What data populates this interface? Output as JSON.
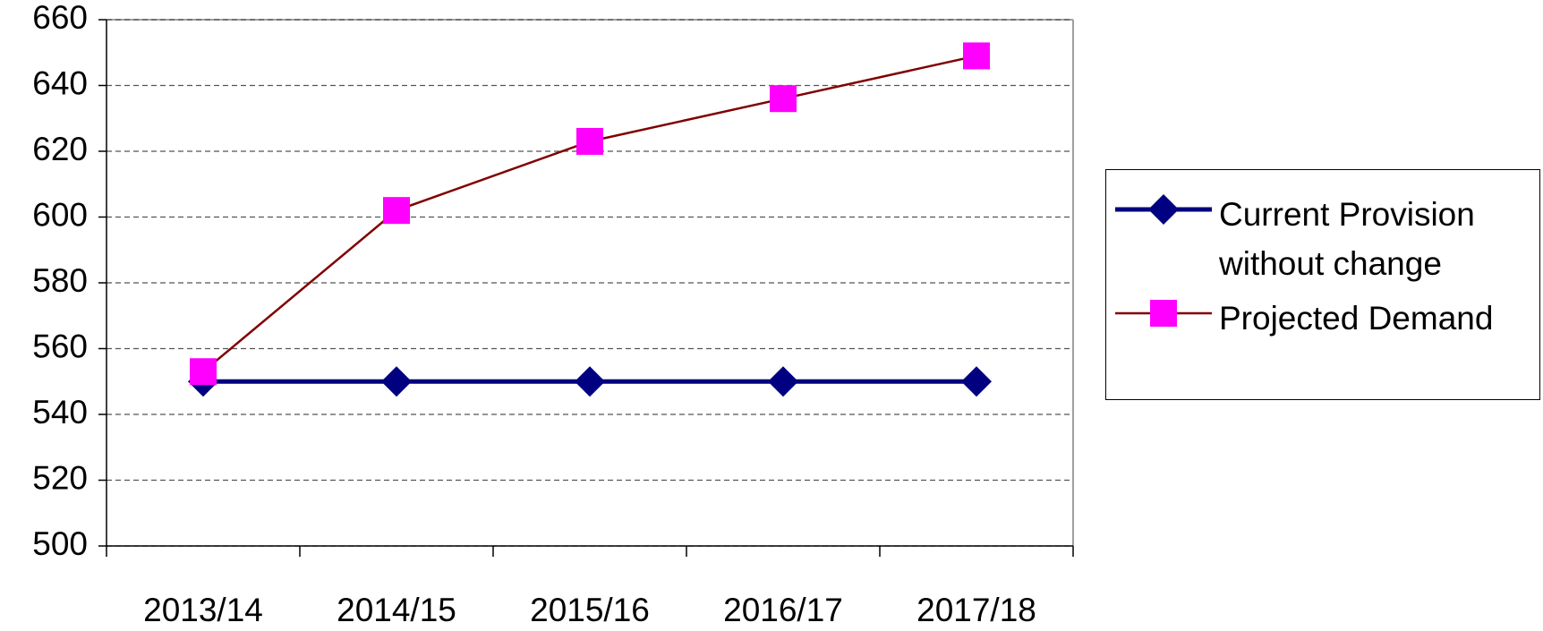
{
  "chart_data": {
    "type": "line",
    "categories": [
      "2013/14",
      "2014/15",
      "2015/16",
      "2016/17",
      "2017/18"
    ],
    "series": [
      {
        "name": "Current Provision without change",
        "color": "#000080",
        "marker": "diamond",
        "values": [
          550,
          550,
          550,
          550,
          550
        ]
      },
      {
        "name": "Projected Demand",
        "color": "#800000",
        "marker_color": "#ff00ff",
        "marker": "square",
        "values": [
          553,
          602,
          623,
          636,
          649
        ]
      }
    ],
    "ylim": [
      500,
      660
    ],
    "yticks": [
      500,
      520,
      540,
      560,
      580,
      600,
      620,
      640,
      660
    ],
    "grid": true,
    "legend": "right"
  }
}
